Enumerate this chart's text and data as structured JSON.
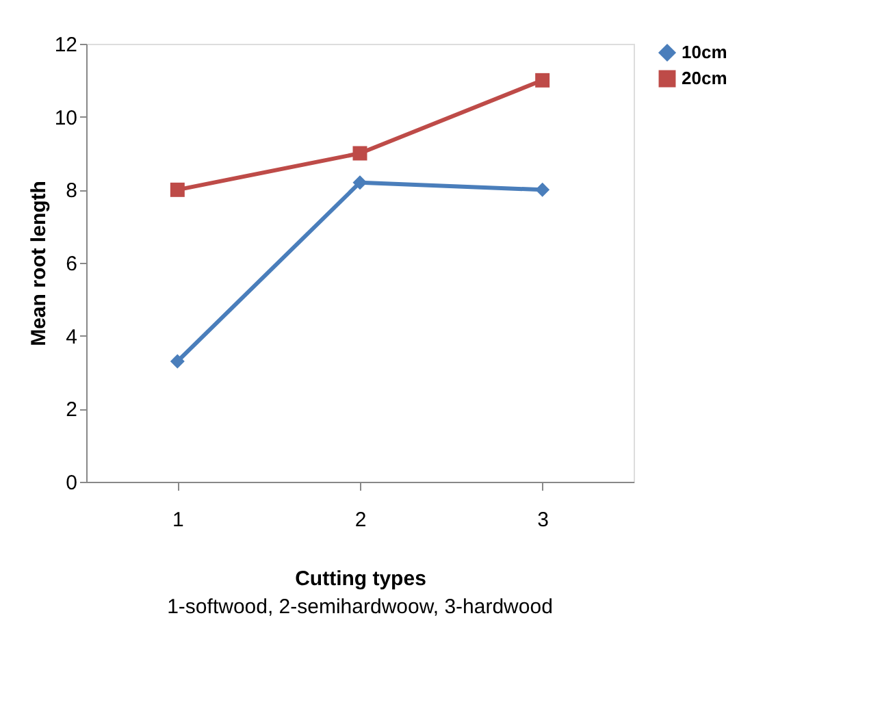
{
  "chart_data": {
    "type": "line",
    "xlabel": "Cutting types",
    "ylabel": "Mean root length",
    "annotations": [
      "1-softwood, 2-semihardwoow, 3-hardwood"
    ],
    "categories": [
      "1",
      "2",
      "3"
    ],
    "ylim": [
      0,
      12
    ],
    "yticks": [
      0,
      2,
      4,
      6,
      8,
      10,
      12
    ],
    "grid": false,
    "legend": "right",
    "series": [
      {
        "name": "10cm",
        "color": "#4a7ebb",
        "values": [
          3.3,
          8.2,
          8.0
        ],
        "marker": "diamond"
      },
      {
        "name": "20cm",
        "color": "#be4b48",
        "values": [
          8,
          9,
          11
        ],
        "marker": "square"
      }
    ]
  }
}
